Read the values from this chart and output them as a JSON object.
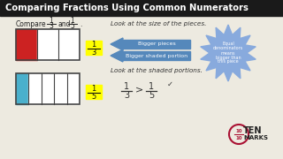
{
  "title": "Comparing Fractions Using Common Numerators",
  "title_bg": "#1a1a1a",
  "title_color": "#ffffff",
  "bg_color": "#edeae0",
  "bar1_color": "#cc2222",
  "bar2_color": "#4ab0cc",
  "bar_bg": "#ffffff",
  "bar_outline": "#444444",
  "label_bg": "#ffff00",
  "look_text1": "Look at the size of the pieces.",
  "look_text2": "Look at the shaded portions.",
  "arrow_label1": "Bigger pieces",
  "arrow_label2": "Bigger shaded portion",
  "arrow_color": "#5588bb",
  "burst_color": "#88aadd",
  "burst_text1": "Equal",
  "burst_text2": "denominators",
  "burst_text3": "means",
  "burst_text4": "bigger than",
  "burst_text5": "this piece",
  "tenmarks_color": "#aa1133"
}
